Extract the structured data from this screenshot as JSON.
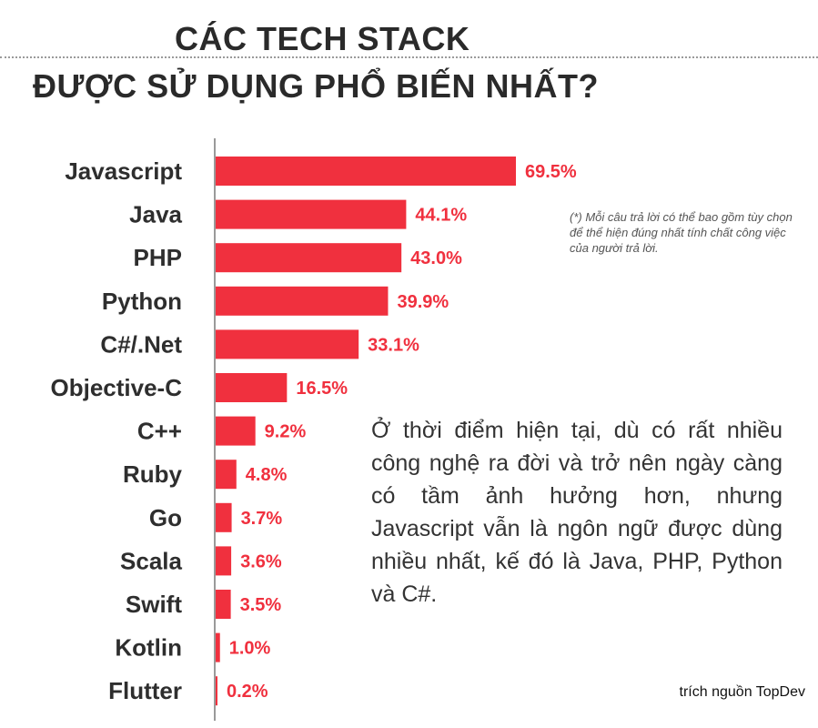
{
  "title_line1": "CÁC TECH STACK",
  "title_line2": "ĐƯỢC SỬ DỤNG PHỔ BIẾN NHẤT?",
  "note": "(*) Mỗi câu trả lời có thể bao gồm tùy chọn để thể hiện đúng nhất tính chất công việc của người trả lời.",
  "paragraph": "Ở thời điểm hiện tại, dù có rất nhiều công nghệ ra đời và trở nên ngày càng có tầm ảnh hưởng hơn, nhưng Javascript vẫn là ngôn ngữ được dùng nhiều nhất, kế đó là Java, PHP, Python và C#.",
  "source": "trích nguồn TopDev",
  "chart_data": {
    "type": "bar",
    "orientation": "horizontal",
    "categories": [
      "Javascript",
      "Java",
      "PHP",
      "Python",
      "C#/.Net",
      "Objective-C",
      "C++",
      "Ruby",
      "Go",
      "Scala",
      "Swift",
      "Kotlin",
      "Flutter"
    ],
    "values": [
      69.5,
      44.1,
      43.0,
      39.9,
      33.1,
      16.5,
      9.2,
      4.8,
      3.7,
      3.6,
      3.5,
      1.0,
      0.2
    ],
    "value_labels": [
      "69.5%",
      "44.1%",
      "43.0%",
      "39.9%",
      "33.1%",
      "16.5%",
      "9.2%",
      "4.8%",
      "3.7%",
      "3.6%",
      "3.5%",
      "1.0%",
      "0.2%"
    ],
    "bar_color": "#f0303e",
    "label_color": "#f0303e",
    "category_color": "#2e2e2e",
    "axis_color": "#9a9a9a",
    "xlim": [
      0,
      70
    ],
    "grid": false,
    "legend": false
  }
}
